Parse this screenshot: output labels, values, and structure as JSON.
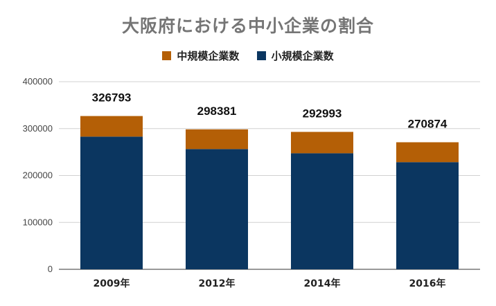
{
  "chart_data": {
    "type": "bar",
    "stacked": true,
    "title": "大阪府における中小企業の割合",
    "categories": [
      "2009年",
      "2012年",
      "2014年",
      "2016年"
    ],
    "series": [
      {
        "name": "中規模企業数",
        "color": "#b45f06",
        "values": [
          43880,
          41980,
          45560,
          42400
        ]
      },
      {
        "name": "小規模企業数",
        "color": "#0b3660",
        "values": [
          282913,
          256401,
          247433,
          228474
        ]
      }
    ],
    "totals": [
      "326793",
      "298381",
      "292993",
      "270874"
    ],
    "yticks": [
      "0",
      "100000",
      "200000",
      "300000",
      "400000"
    ],
    "ylim": [
      0,
      400000
    ],
    "grid": true,
    "legend_position": "top"
  }
}
